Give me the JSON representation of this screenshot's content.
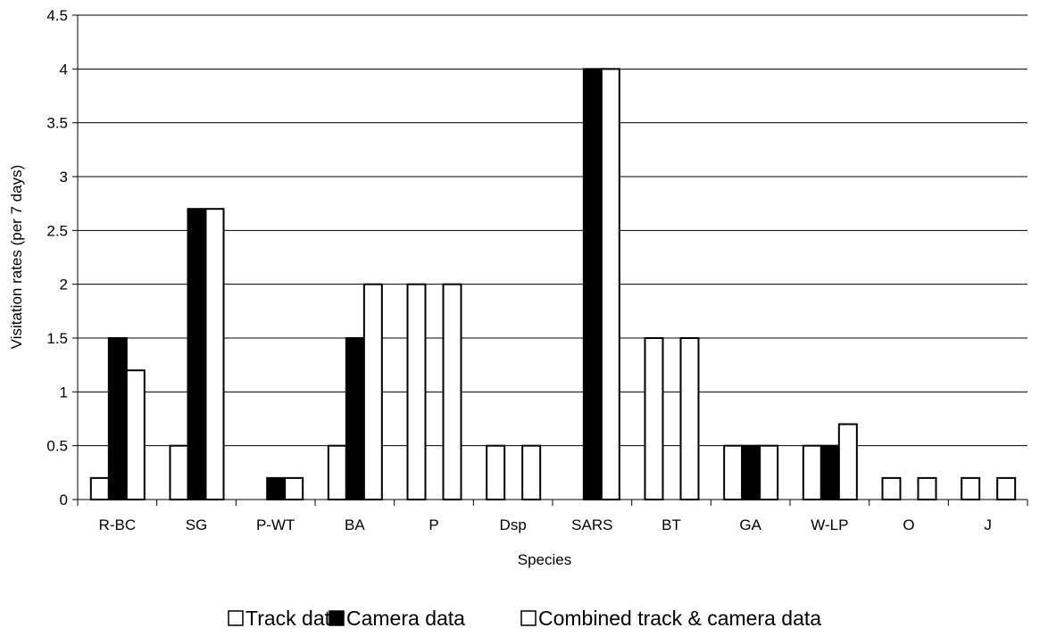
{
  "chart_data": {
    "type": "bar",
    "title": "",
    "xlabel": "Species",
    "ylabel": "Visitation rates (per 7 days)",
    "ylim": [
      0,
      4.5
    ],
    "yticks": [
      0,
      0.5,
      1,
      1.5,
      2,
      2.5,
      3,
      3.5,
      4,
      4.5
    ],
    "ytick_labels": [
      "0",
      "0.5",
      "1",
      "1.5",
      "2",
      "2.5",
      "3",
      "3.5",
      "4",
      "4.5"
    ],
    "grid": "horizontal",
    "legend_position": "bottom",
    "categories": [
      "R-BC",
      "SG",
      "P-WT",
      "BA",
      "P",
      "Dsp",
      "SARS",
      "BT",
      "GA",
      "W-LP",
      "O",
      "J"
    ],
    "series": [
      {
        "name": "Track data",
        "color": "#ffffff",
        "values": [
          0.2,
          0.5,
          0,
          0.5,
          2,
          0.5,
          0,
          1.5,
          0.5,
          0.5,
          0.2,
          0.2
        ]
      },
      {
        "name": "Camera data",
        "color": "#000000",
        "values": [
          1.5,
          2.7,
          0.2,
          1.5,
          0,
          0,
          4,
          0,
          0.5,
          0.5,
          0,
          0
        ]
      },
      {
        "name": "Combined track & camera data",
        "color": "#ffffff",
        "values": [
          1.2,
          2.7,
          0.2,
          2,
          2,
          0.5,
          4,
          1.5,
          0.5,
          0.7,
          0.2,
          0.2
        ]
      }
    ]
  }
}
